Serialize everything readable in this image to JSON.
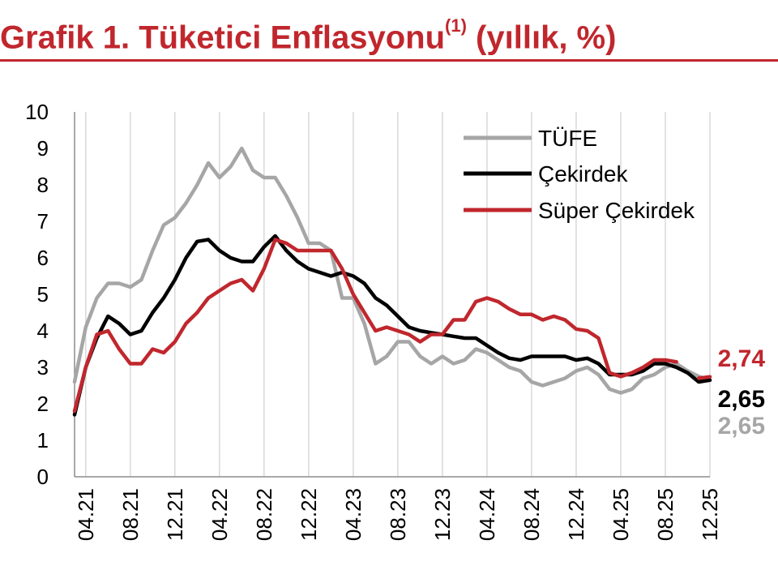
{
  "title": {
    "main": "Grafik 1. Tüketici Enflasyonu",
    "sup": "(1)",
    "suffix": " (yıllık, %)"
  },
  "colors": {
    "title": "#c0272d",
    "tufe": "#a6a6a6",
    "cekirdek": "#000000",
    "super": "#c0272d",
    "grid": "#d9d9d9"
  },
  "chart_data": {
    "type": "line",
    "title": "Grafik 1. Tüketici Enflasyonu(1) (yıllık, %)",
    "xlabel": "",
    "ylabel": "",
    "ylim": [
      0,
      10
    ],
    "yticks": [
      "0",
      "1",
      "2",
      "3",
      "4",
      "5",
      "6",
      "7",
      "8",
      "9",
      "10"
    ],
    "xtick_labels": [
      "04.21",
      "08.21",
      "12.21",
      "04.22",
      "08.22",
      "12.22",
      "04.23",
      "08.23",
      "12.23",
      "04.24",
      "08.24",
      "12.24",
      "04.25",
      "08.25",
      "12.25"
    ],
    "grid": "vertical",
    "legend_position": "top-right",
    "x": [
      "03.21",
      "04.21",
      "05.21",
      "06.21",
      "07.21",
      "08.21",
      "09.21",
      "10.21",
      "11.21",
      "12.21",
      "01.22",
      "02.22",
      "03.22",
      "04.22",
      "05.22",
      "06.22",
      "07.22",
      "08.22",
      "09.22",
      "10.22",
      "11.22",
      "12.22",
      "01.23",
      "02.23",
      "03.23",
      "04.23",
      "05.23",
      "06.23",
      "07.23",
      "08.23",
      "09.23",
      "10.23",
      "11.23",
      "12.23",
      "01.24",
      "02.24",
      "03.24",
      "04.24",
      "05.24",
      "06.24",
      "07.24",
      "08.24",
      "09.24",
      "10.24",
      "11.24",
      "12.24",
      "01.25",
      "02.25",
      "03.25",
      "04.25",
      "05.25",
      "06.25",
      "07.25",
      "08.25",
      "09.25",
      "10.25",
      "11.25",
      "12.25"
    ],
    "series": [
      {
        "name": "TÜFE",
        "color": "#a6a6a6",
        "values": [
          2.6,
          4.1,
          4.9,
          5.3,
          5.3,
          5.2,
          5.4,
          6.2,
          6.9,
          7.1,
          7.5,
          8.0,
          8.6,
          8.2,
          8.5,
          9.0,
          8.4,
          8.2,
          8.2,
          7.7,
          7.1,
          6.4,
          6.4,
          6.2,
          4.9,
          4.9,
          4.2,
          3.1,
          3.3,
          3.7,
          3.7,
          3.3,
          3.1,
          3.3,
          3.1,
          3.2,
          3.5,
          3.4,
          3.2,
          3.0,
          2.9,
          2.6,
          2.5,
          2.6,
          2.7,
          2.9,
          3.0,
          2.8,
          2.4,
          2.3,
          2.4,
          2.7,
          2.8,
          3.0,
          3.1,
          2.9,
          2.75,
          2.65
        ]
      },
      {
        "name": "Çekirdek",
        "color": "#000000",
        "values": [
          1.7,
          3.0,
          3.8,
          4.4,
          4.2,
          3.9,
          4.0,
          4.5,
          4.9,
          5.4,
          6.0,
          6.45,
          6.5,
          6.2,
          6.0,
          5.9,
          5.9,
          6.3,
          6.6,
          6.2,
          5.9,
          5.7,
          5.6,
          5.5,
          5.6,
          5.5,
          5.3,
          4.9,
          4.7,
          4.4,
          4.1,
          4.0,
          3.95,
          3.9,
          3.85,
          3.8,
          3.8,
          3.6,
          3.4,
          3.25,
          3.2,
          3.3,
          3.3,
          3.3,
          3.3,
          3.2,
          3.25,
          3.1,
          2.8,
          2.8,
          2.8,
          2.9,
          3.1,
          3.1,
          3.0,
          2.85,
          2.6,
          2.65
        ]
      },
      {
        "name": "Süper Çekirdek",
        "color": "#c0272d",
        "values": [
          1.8,
          3.0,
          3.9,
          4.0,
          3.5,
          3.1,
          3.1,
          3.5,
          3.4,
          3.7,
          4.2,
          4.5,
          4.9,
          5.1,
          5.3,
          5.4,
          5.1,
          5.7,
          6.5,
          6.4,
          6.2,
          6.2,
          6.2,
          6.2,
          5.7,
          5.0,
          4.5,
          4.0,
          4.1,
          4.0,
          3.9,
          3.7,
          3.9,
          3.9,
          4.3,
          4.3,
          4.8,
          4.9,
          4.8,
          4.6,
          4.45,
          4.45,
          4.3,
          4.4,
          4.3,
          4.05,
          4.0,
          3.8,
          2.85,
          2.75,
          2.85,
          3.0,
          3.2,
          3.2,
          3.15,
          null,
          2.7,
          2.74
        ]
      }
    ],
    "end_labels": [
      {
        "series": "Süper Çekirdek",
        "text": "2,74",
        "color": "#c0272d"
      },
      {
        "series": "Çekirdek",
        "text": "2,65",
        "color": "#000000"
      },
      {
        "series": "TÜFE",
        "text": "2,65",
        "color": "#a6a6a6"
      }
    ]
  }
}
